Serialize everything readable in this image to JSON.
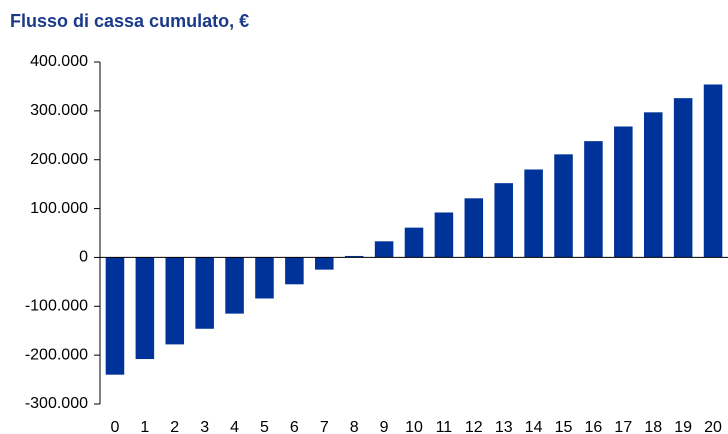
{
  "chart_data": {
    "type": "bar",
    "title": "Flusso di cassa cumulato, €",
    "categories": [
      "0",
      "1",
      "2",
      "3",
      "4",
      "5",
      "6",
      "7",
      "8",
      "9",
      "10",
      "11",
      "12",
      "13",
      "14",
      "15",
      "16",
      "17",
      "18",
      "19",
      "20"
    ],
    "values": [
      -240000,
      -208000,
      -178000,
      -146000,
      -115000,
      -84000,
      -55000,
      -25000,
      3000,
      33000,
      61000,
      92000,
      121000,
      152000,
      180000,
      211000,
      238000,
      268000,
      297000,
      326000,
      354000
    ],
    "color": "#003399",
    "ylim": [
      -300000,
      400000
    ],
    "yticks": [
      {
        "value": -300000,
        "label": "-300.000"
      },
      {
        "value": -200000,
        "label": "-200.000"
      },
      {
        "value": -100000,
        "label": "-100.000"
      },
      0,
      {
        "value": 100000,
        "label": "100.000"
      },
      {
        "value": 200000,
        "label": "200.000"
      },
      {
        "value": 300000,
        "label": "300.000"
      },
      {
        "value": 400000,
        "label": "400.000"
      }
    ],
    "grid": false
  }
}
